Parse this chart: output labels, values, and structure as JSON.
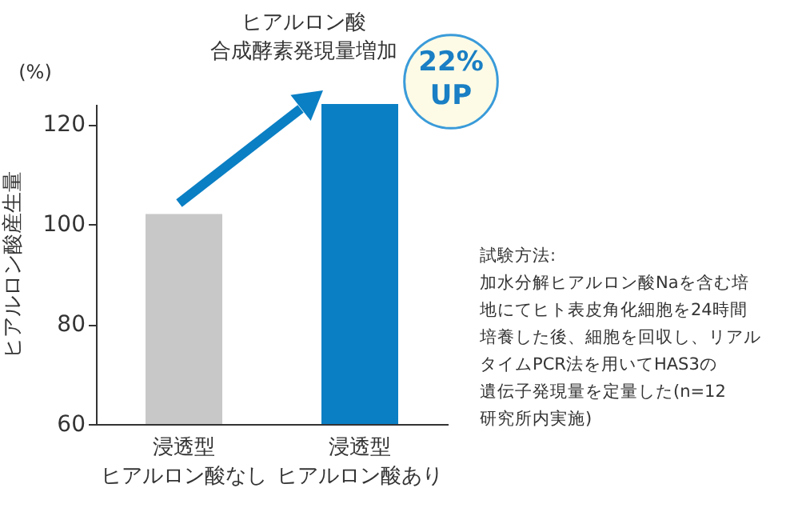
{
  "chart_data": {
    "type": "bar",
    "title": "ヒアルロン酸合成酵素発現量増加",
    "ylabel": "ヒアルロン酸産生量",
    "categories": [
      "浸透型ヒアルロン酸なし",
      "浸透型ヒアルロン酸あり"
    ],
    "values": [
      102,
      124
    ],
    "colors": [
      "#c8c8c8",
      "#0a7fc4"
    ],
    "ylim": [
      60,
      124
    ],
    "yticks": [
      60,
      80,
      100,
      120
    ],
    "grid": false,
    "annotations": [
      "(%)",
      "22% UP",
      "試験方法:",
      "加水分解ヒアルロン酸Naを含む培地にてヒト表皮角化細胞を24時間培養した後、細胞を回収し、リアルタイムPCR法を用いてHAS3の遺伝子発現量を定量した(n=12研究所内実施)"
    ]
  }
}
